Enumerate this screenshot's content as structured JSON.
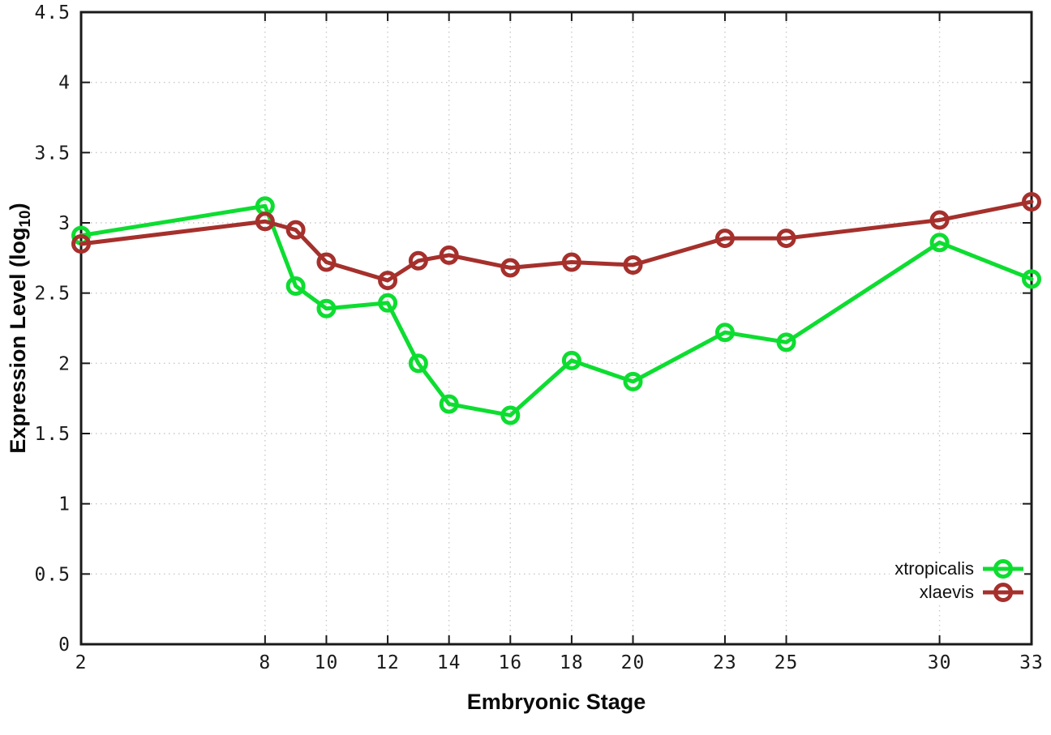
{
  "chart_data": {
    "type": "line",
    "title": "",
    "xlabel": "Embryonic Stage",
    "ylabel": "Expression Level (log10)",
    "ylabel_parts": {
      "prefix": "Expression Level (log",
      "sub": "10",
      "suffix": ")"
    },
    "xlim": [
      2,
      33
    ],
    "ylim": [
      0,
      4.5
    ],
    "grid": true,
    "legend_position": "inside bottom-right",
    "x_tick_labels": [
      "2",
      "8",
      "10",
      "12",
      "14",
      "16",
      "18",
      "20",
      "23",
      "25",
      "30",
      "33"
    ],
    "x_tick_values": [
      2,
      8,
      10,
      12,
      14,
      16,
      18,
      20,
      23,
      25,
      30,
      33
    ],
    "y_tick_labels": [
      "0",
      "0.5",
      "1",
      "1.5",
      "2",
      "2.5",
      "3",
      "3.5",
      "4",
      "4.5"
    ],
    "y_tick_values": [
      0,
      0.5,
      1,
      1.5,
      2,
      2.5,
      3,
      3.5,
      4,
      4.5
    ],
    "x": [
      2,
      8,
      9,
      10,
      12,
      13,
      14,
      16,
      18,
      20,
      23,
      25,
      30,
      33
    ],
    "series": [
      {
        "name": "xtropicalis",
        "color": "#0ddd30",
        "marker": "open-circle",
        "values": [
          2.91,
          3.12,
          2.55,
          2.39,
          2.43,
          2.0,
          1.71,
          1.63,
          2.02,
          1.87,
          2.22,
          2.15,
          2.86,
          2.6
        ]
      },
      {
        "name": "xlaevis",
        "color": "#a5302c",
        "marker": "open-circle",
        "values": [
          2.85,
          3.01,
          2.95,
          2.72,
          2.59,
          2.73,
          2.77,
          2.68,
          2.72,
          2.7,
          2.89,
          2.89,
          3.02,
          3.15
        ]
      }
    ],
    "colors": {
      "background": "#ffffff",
      "border": "#1a1a1a",
      "grid": "#c9c9c9",
      "tick_text": "#1a1a1a"
    }
  }
}
